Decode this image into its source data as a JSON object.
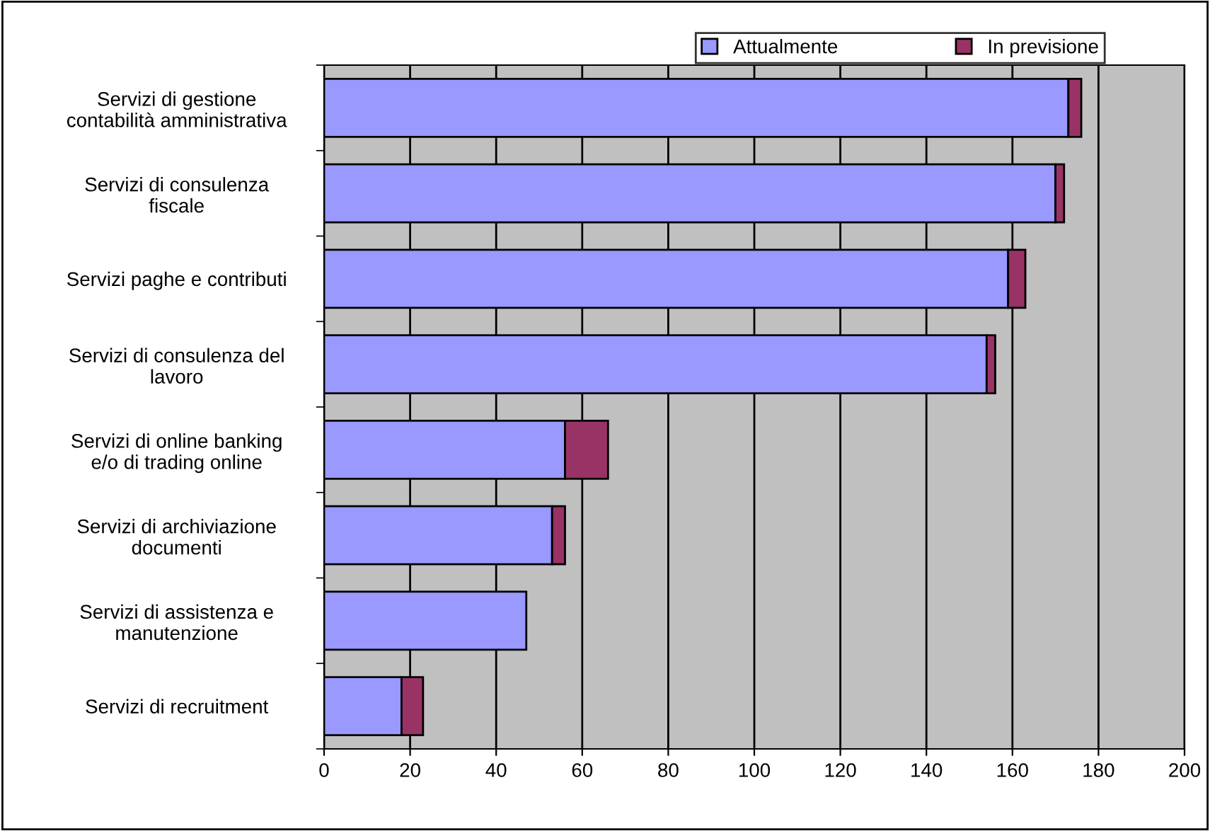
{
  "chart_data": {
    "type": "bar",
    "orientation": "horizontal",
    "stacked": true,
    "categories": [
      "Servizi di gestione\ncontabilità amministrativa",
      "Servizi di consulenza\nfiscale",
      "Servizi paghe e contributi",
      "Servizi di consulenza del\nlavoro",
      "Servizi di online banking\ne/o di trading online",
      "Servizi di archiviazione\ndocumenti",
      "Servizi di assistenza e\nmanutenzione",
      "Servizi di recruitment"
    ],
    "series": [
      {
        "name": "Attualmente",
        "color": "#9999ff",
        "values": [
          173,
          170,
          159,
          154,
          56,
          53,
          47,
          18
        ]
      },
      {
        "name": "In previsione",
        "color": "#993366",
        "values": [
          3,
          2,
          4,
          2,
          10,
          3,
          null,
          5
        ]
      }
    ],
    "xlim": [
      0,
      200
    ],
    "xticks": [
      0,
      20,
      40,
      60,
      80,
      100,
      120,
      140,
      160,
      180,
      200
    ],
    "grid": "x",
    "legend": "top right"
  }
}
